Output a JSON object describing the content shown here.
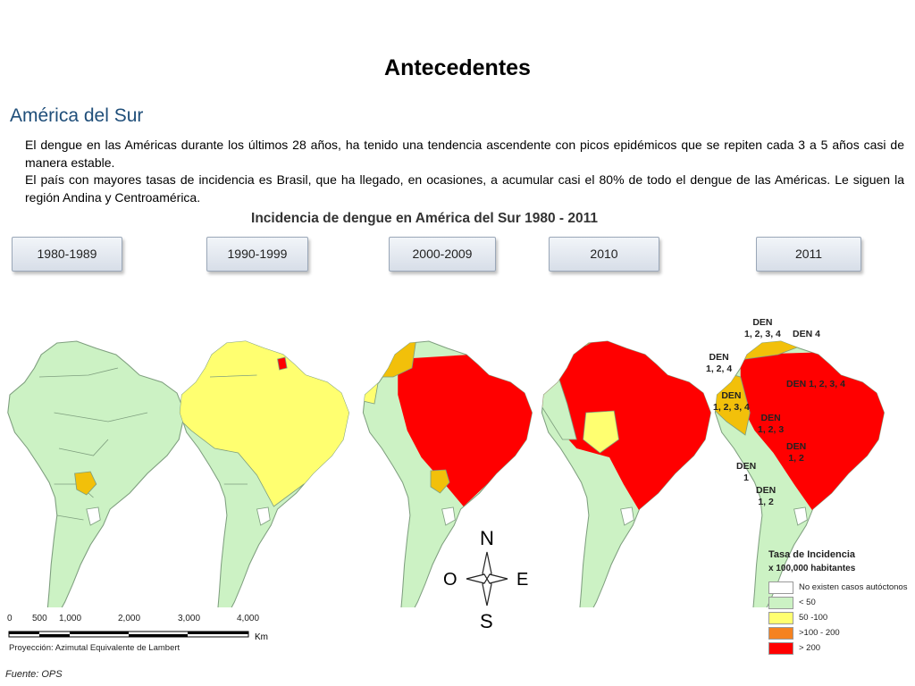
{
  "title": "Antecedentes",
  "subtitle": "América del Sur",
  "paragraphs": [
    "El dengue en las Américas durante los últimos 28 años, ha tenido una tendencia ascendente con picos epidémicos que se repiten cada 3 a 5 años casi de manera estable.",
    "El país con mayores tasas de incidencia es Brasil, que ha llegado, en ocasiones, a acumular casi el 80% de todo el dengue de las Américas. Le siguen la región Andina y Centroamérica."
  ],
  "figure_title": "Incidencia de dengue en América del Sur 1980 - 2011",
  "periods": [
    "1980-1989",
    "1990-1999",
    "2000-2009",
    "2010",
    "2011"
  ],
  "serotype_labels": [
    "DEN\n1, 2, 3, 4",
    "DEN 4",
    "DEN\n1, 2, 4",
    "DEN 1, 2, 3, 4",
    "DEN\n1, 2, 3, 4",
    "DEN\n1, 2, 3",
    "DEN\n1, 2",
    "DEN\n1",
    "DEN\n1, 2"
  ],
  "compass": {
    "n": "N",
    "s": "S",
    "e": "E",
    "w": "O"
  },
  "scale": {
    "ticks": [
      "0",
      "500",
      "1,000",
      "2,000",
      "3,000",
      "4,000"
    ],
    "unit": "Km"
  },
  "projection": "Proyección: Azimutal Equivalente de Lambert",
  "source": "Fuente: OPS",
  "legend": {
    "title": "Tasa de Incidencia",
    "subtitle": "x 100,000 habitantes",
    "items": [
      {
        "label": "No existen casos autóctonos",
        "color": "#ffffff"
      },
      {
        "label": "< 50",
        "color": "#ccf2c4"
      },
      {
        "label": "50 -100",
        "color": "#ffff70"
      },
      {
        "label": ">100 - 200",
        "color": "#f58220"
      },
      {
        "label": "> 200",
        "color": "#ff0000"
      }
    ]
  },
  "colors": {
    "none": "#ffffff",
    "low": "#ccf2c4",
    "mid": "#ffff70",
    "high": "#f2c00a",
    "orange": "#f58220",
    "red": "#ff0000",
    "border": "#7f9f7f"
  }
}
